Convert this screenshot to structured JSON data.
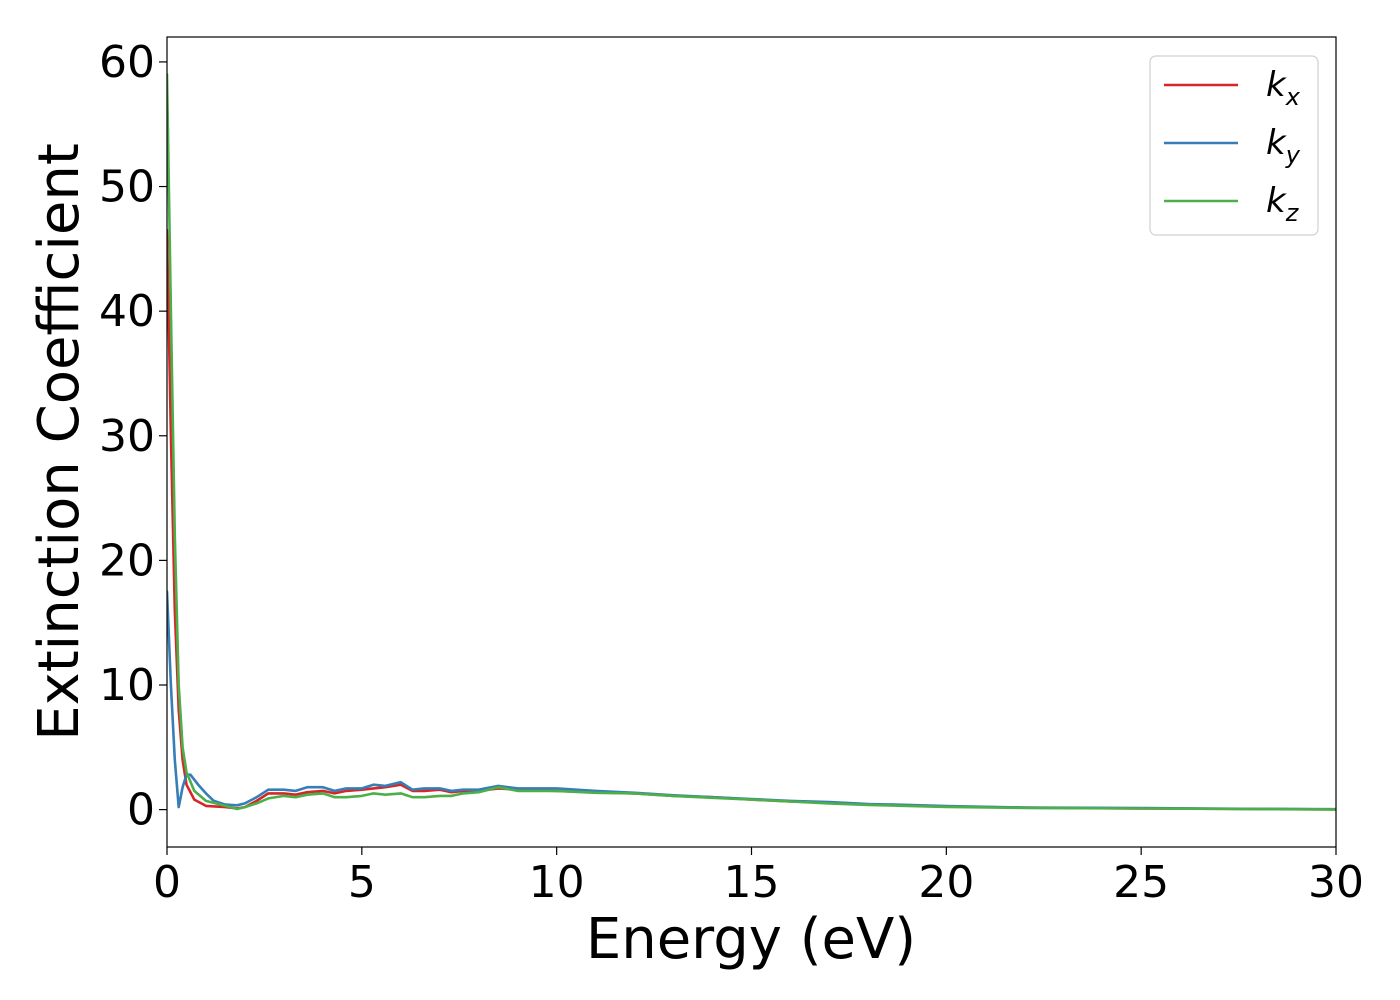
{
  "chart_data": {
    "type": "line",
    "title": "",
    "xlabel": "Energy (eV)",
    "ylabel": "Extinction Coefficient",
    "xlim": [
      0,
      30
    ],
    "ylim": [
      -3,
      62
    ],
    "xticks": [
      0,
      5,
      10,
      15,
      20,
      25,
      30
    ],
    "xtick_labels": [
      "0",
      "5",
      "10",
      "15",
      "20",
      "25",
      "30"
    ],
    "yticks": [
      0,
      10,
      20,
      30,
      40,
      50,
      60
    ],
    "ytick_labels": [
      "0",
      "10",
      "20",
      "30",
      "40",
      "50",
      "60"
    ],
    "grid": false,
    "legend_position": "top-right",
    "series": [
      {
        "name": "k",
        "subscript": "x",
        "color": "#d62728",
        "x": [
          0,
          0.1,
          0.2,
          0.3,
          0.4,
          0.5,
          0.7,
          1.0,
          1.5,
          1.8,
          2.0,
          2.3,
          2.6,
          3.0,
          3.3,
          3.6,
          4.0,
          4.3,
          4.6,
          5.0,
          5.3,
          5.6,
          6.0,
          6.3,
          6.6,
          7.0,
          7.3,
          7.6,
          8.0,
          8.5,
          9.0,
          10.0,
          11.0,
          12.0,
          13.0,
          14.0,
          15.0,
          16.0,
          17.0,
          18.0,
          19.0,
          20.0,
          22.0,
          25.0,
          28.0,
          30.0
        ],
        "values": [
          46.5,
          30.0,
          16.0,
          8.0,
          4.0,
          2.0,
          0.8,
          0.3,
          0.2,
          0.1,
          0.2,
          0.7,
          1.3,
          1.3,
          1.2,
          1.4,
          1.5,
          1.3,
          1.5,
          1.6,
          1.7,
          1.8,
          2.0,
          1.5,
          1.5,
          1.6,
          1.4,
          1.5,
          1.5,
          1.7,
          1.6,
          1.5,
          1.4,
          1.3,
          1.1,
          1.0,
          0.8,
          0.65,
          0.55,
          0.4,
          0.35,
          0.25,
          0.15,
          0.1,
          0.05,
          0.02
        ]
      },
      {
        "name": "k",
        "subscript": "y",
        "color": "#377eb8",
        "x": [
          0,
          0.1,
          0.2,
          0.3,
          0.4,
          0.5,
          0.6,
          0.8,
          1.0,
          1.2,
          1.5,
          1.8,
          2.0,
          2.3,
          2.6,
          3.0,
          3.3,
          3.6,
          4.0,
          4.3,
          4.6,
          5.0,
          5.3,
          5.6,
          6.0,
          6.3,
          6.6,
          7.0,
          7.3,
          7.6,
          8.0,
          8.5,
          9.0,
          10.0,
          11.0,
          12.0,
          13.0,
          14.0,
          15.0,
          16.0,
          17.0,
          18.0,
          19.0,
          20.0,
          22.0,
          25.0,
          28.0,
          30.0
        ],
        "values": [
          17.5,
          10.0,
          4.0,
          0.2,
          1.8,
          2.8,
          2.8,
          2.0,
          1.3,
          0.7,
          0.4,
          0.35,
          0.5,
          1.0,
          1.6,
          1.6,
          1.5,
          1.8,
          1.8,
          1.5,
          1.7,
          1.7,
          2.0,
          1.9,
          2.2,
          1.6,
          1.7,
          1.7,
          1.5,
          1.6,
          1.6,
          1.9,
          1.7,
          1.7,
          1.5,
          1.35,
          1.15,
          1.0,
          0.85,
          0.7,
          0.6,
          0.45,
          0.38,
          0.28,
          0.17,
          0.12,
          0.06,
          0.03
        ]
      },
      {
        "name": "k",
        "subscript": "z",
        "color": "#4daf4a",
        "x": [
          0,
          0.1,
          0.2,
          0.3,
          0.4,
          0.5,
          0.7,
          1.0,
          1.5,
          1.8,
          2.0,
          2.3,
          2.6,
          3.0,
          3.3,
          3.6,
          4.0,
          4.3,
          4.6,
          5.0,
          5.3,
          5.6,
          6.0,
          6.3,
          6.6,
          7.0,
          7.3,
          7.6,
          8.0,
          8.5,
          9.0,
          10.0,
          11.0,
          12.0,
          13.0,
          14.0,
          15.0,
          16.0,
          17.0,
          18.0,
          19.0,
          20.0,
          22.0,
          25.0,
          28.0,
          30.0
        ],
        "values": [
          59.0,
          40.0,
          22.0,
          10.0,
          5.0,
          3.0,
          1.5,
          0.7,
          0.3,
          0.05,
          0.2,
          0.5,
          0.9,
          1.1,
          1.0,
          1.2,
          1.3,
          1.0,
          1.0,
          1.1,
          1.3,
          1.2,
          1.3,
          1.0,
          1.0,
          1.1,
          1.1,
          1.3,
          1.4,
          1.8,
          1.5,
          1.5,
          1.35,
          1.3,
          1.1,
          0.95,
          0.8,
          0.65,
          0.5,
          0.38,
          0.3,
          0.22,
          0.14,
          0.09,
          0.04,
          0.02
        ]
      }
    ]
  }
}
